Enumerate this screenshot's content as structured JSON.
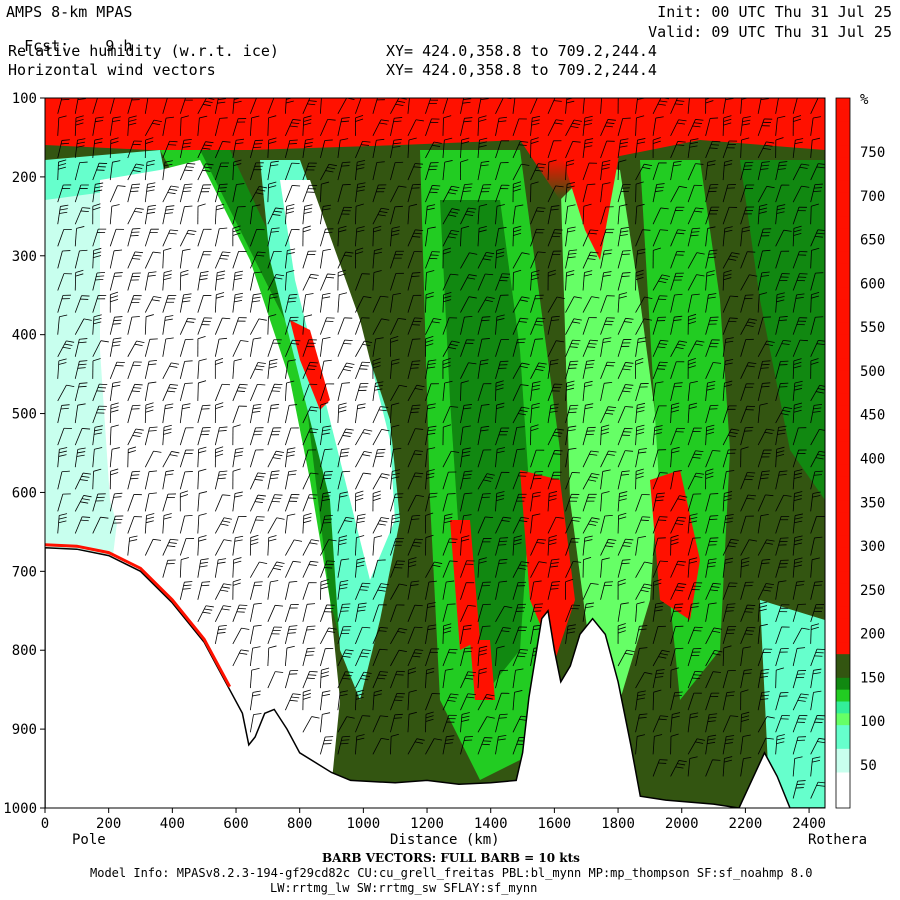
{
  "header": {
    "model": "AMPS 8-km MPAS",
    "fcst_label": "Fcst:",
    "fcst_value": "9 h",
    "field1": "Relative humidity (w.r.t. ice)",
    "field2": "Horizontal wind vectors",
    "xy1": "XY= 424.0,358.8 to 709.2,244.4",
    "xy2": "XY= 424.0,358.8 to 709.2,244.4",
    "init": "Init: 00 UTC Thu 31 Jul 25",
    "valid": "Valid: 09 UTC Thu 31 Jul 25"
  },
  "footer": {
    "barb": "BARB VECTORS: FULL BARB = 10 kts",
    "model_info": "Model Info: MPASv8.2.3-194-gf29cd82c CU:cu_grell_freitas PBL:bl_mynn MP:mp_thompson SF:sf_noahmp 8.0",
    "model_info2": "LW:rrtmg_lw SW:rrtmg_sw SFLAY:sf_mynn"
  },
  "chart_data": {
    "type": "heatmap",
    "title": "Relative humidity (w.r.t. ice)",
    "xlabel": "Distance (km)",
    "ylabel": "",
    "x_ticks": [
      "0",
      "200",
      "400",
      "600",
      "800",
      "1000",
      "1200",
      "1400",
      "1600",
      "1800",
      "2000",
      "2200",
      "2400"
    ],
    "y_ticks": [
      "100",
      "200",
      "300",
      "400",
      "500",
      "600",
      "700",
      "800",
      "900",
      "1000"
    ],
    "xlim": [
      0,
      2450
    ],
    "ylim": [
      1000,
      100
    ],
    "endpoint_left": "Pole",
    "endpoint_right": "Rothera",
    "colorbar": {
      "unit": "%",
      "levels": [
        "50",
        "100",
        "150",
        "200",
        "250",
        "300",
        "350",
        "400",
        "450",
        "500",
        "550",
        "600",
        "650",
        "700",
        "750"
      ],
      "colors": [
        "#ffffff",
        "#c8ffee",
        "#66ffcc",
        "#33ee99",
        "#66ff66",
        "#22cc22",
        "#118811",
        "#335511",
        "#ff1100"
      ]
    },
    "terrain": [
      {
        "x": 0,
        "p": 670
      },
      {
        "x": 100,
        "p": 672
      },
      {
        "x": 200,
        "p": 680
      },
      {
        "x": 300,
        "p": 700
      },
      {
        "x": 400,
        "p": 740
      },
      {
        "x": 500,
        "p": 790
      },
      {
        "x": 540,
        "p": 820
      },
      {
        "x": 580,
        "p": 850
      },
      {
        "x": 620,
        "p": 880
      },
      {
        "x": 640,
        "p": 920
      },
      {
        "x": 660,
        "p": 910
      },
      {
        "x": 690,
        "p": 880
      },
      {
        "x": 720,
        "p": 875
      },
      {
        "x": 760,
        "p": 900
      },
      {
        "x": 800,
        "p": 930
      },
      {
        "x": 860,
        "p": 945
      },
      {
        "x": 900,
        "p": 955
      },
      {
        "x": 960,
        "p": 965
      },
      {
        "x": 1100,
        "p": 968
      },
      {
        "x": 1200,
        "p": 965
      },
      {
        "x": 1300,
        "p": 970
      },
      {
        "x": 1400,
        "p": 968
      },
      {
        "x": 1480,
        "p": 965
      },
      {
        "x": 1500,
        "p": 930
      },
      {
        "x": 1520,
        "p": 860
      },
      {
        "x": 1560,
        "p": 760
      },
      {
        "x": 1580,
        "p": 750
      },
      {
        "x": 1600,
        "p": 800
      },
      {
        "x": 1620,
        "p": 840
      },
      {
        "x": 1650,
        "p": 820
      },
      {
        "x": 1680,
        "p": 780
      },
      {
        "x": 1720,
        "p": 760
      },
      {
        "x": 1760,
        "p": 780
      },
      {
        "x": 1800,
        "p": 840
      },
      {
        "x": 1840,
        "p": 920
      },
      {
        "x": 1870,
        "p": 985
      },
      {
        "x": 1950,
        "p": 990
      },
      {
        "x": 2100,
        "p": 995
      },
      {
        "x": 2180,
        "p": 1000
      },
      {
        "x": 2260,
        "p": 930
      },
      {
        "x": 2300,
        "p": 960
      },
      {
        "x": 2340,
        "p": 1000
      },
      {
        "x": 2450,
        "p": 1000
      }
    ]
  }
}
